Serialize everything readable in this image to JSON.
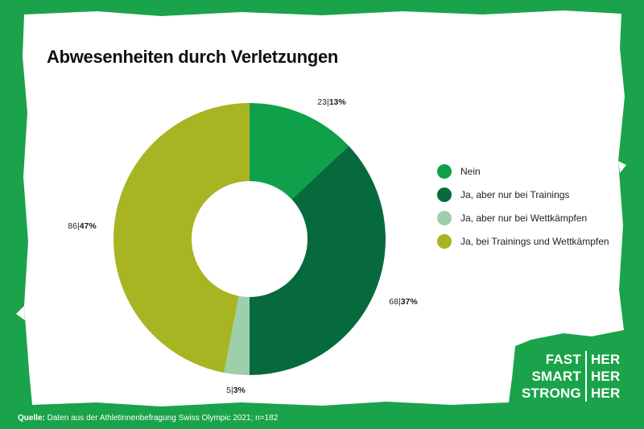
{
  "title": "Abwesenheiten durch Verletzungen",
  "colors": {
    "background": "#1aa34a",
    "card": "#ffffff",
    "nein": "#0fa14a",
    "trainings": "#066a3e",
    "wettkaempfe": "#9dcfab",
    "beides": "#a8b522"
  },
  "chart_data": {
    "type": "pie",
    "donut": true,
    "title": "Abwesenheiten durch Verletzungen",
    "slices": [
      {
        "label": "Nein",
        "count": "23",
        "percent": "13%",
        "value": 13,
        "color_key": "nein"
      },
      {
        "label": "Ja, aber nur bei Trainings",
        "count": "68",
        "percent": "37%",
        "value": 37,
        "color_key": "trainings"
      },
      {
        "label": "Ja, aber nur bei Wettkämpfen",
        "count": "5",
        "percent": "3%",
        "value": 3,
        "color_key": "wettkaempfe"
      },
      {
        "label": "Ja, bei Trainings und Wettkämpfen",
        "count": "86",
        "percent": "47%",
        "value": 47,
        "color_key": "beides"
      }
    ],
    "legend_position": "right"
  },
  "source": {
    "prefix": "Quelle:",
    "text": " Daten aus der Athletinnenbefragung Swiss Olympic 2021; n=182"
  },
  "brand": {
    "left": [
      "FAST",
      "SMART",
      "STRONG"
    ],
    "right": [
      "HER",
      "HER",
      "HER"
    ]
  }
}
